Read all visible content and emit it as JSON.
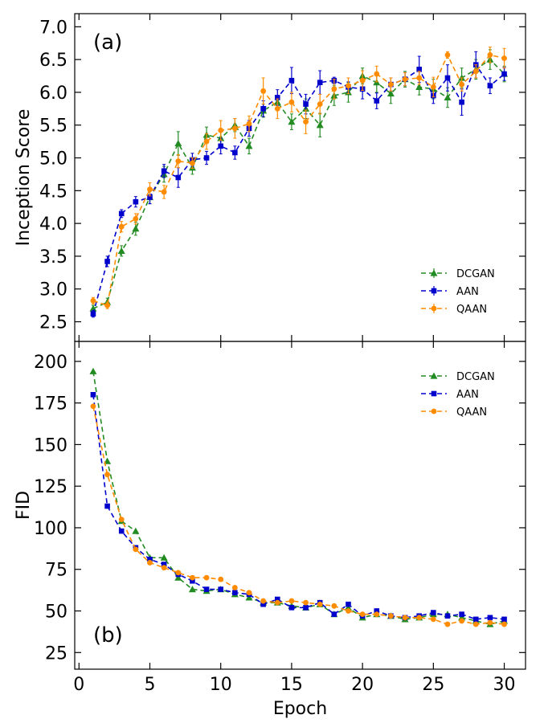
{
  "colors": {
    "DCGAN": "#228B22",
    "AAN": "#0000CD",
    "QAAN": "#FF8C00"
  },
  "chart_data": [
    {
      "type": "line",
      "panel_label": "(a)",
      "ylabel": "Inception Score",
      "xlabel": "",
      "xlim": [
        -0.3,
        31.5
      ],
      "ylim": [
        2.2,
        7.2
      ],
      "yticks": [
        2.5,
        3.0,
        3.5,
        4.0,
        4.5,
        5.0,
        5.5,
        6.0,
        6.5,
        7.0
      ],
      "ytick_labels": [
        "2.5",
        "3.0",
        "3.5",
        "4.0",
        "4.5",
        "5.0",
        "5.5",
        "6.0",
        "6.5",
        "7.0"
      ],
      "legend_position": "lower-right",
      "grid": false,
      "x": [
        1,
        2,
        3,
        4,
        5,
        6,
        7,
        8,
        9,
        10,
        11,
        12,
        13,
        14,
        15,
        16,
        17,
        18,
        19,
        20,
        21,
        22,
        23,
        24,
        25,
        26,
        27,
        28,
        29,
        30
      ],
      "series": [
        {
          "name": "DCGAN",
          "marker": "triangle",
          "linestyle": "dashed",
          "values": [
            2.7,
            2.8,
            3.58,
            3.92,
            4.4,
            4.75,
            5.22,
            4.85,
            5.35,
            5.3,
            5.5,
            5.18,
            5.72,
            5.85,
            5.55,
            5.75,
            5.5,
            5.95,
            6.0,
            6.25,
            6.15,
            5.98,
            6.2,
            6.08,
            6.05,
            5.92,
            6.22,
            6.35,
            6.5,
            6.28
          ],
          "errors": [
            0.05,
            0.06,
            0.08,
            0.1,
            0.1,
            0.12,
            0.18,
            0.1,
            0.12,
            0.12,
            0.1,
            0.12,
            0.1,
            0.1,
            0.12,
            0.15,
            0.18,
            0.15,
            0.15,
            0.12,
            0.15,
            0.15,
            0.12,
            0.12,
            0.15,
            0.15,
            0.15,
            0.15,
            0.15,
            0.12
          ]
        },
        {
          "name": "AAN",
          "marker": "square",
          "linestyle": "dashed",
          "values": [
            2.62,
            3.42,
            4.15,
            4.33,
            4.4,
            4.8,
            4.7,
            4.97,
            5.0,
            5.18,
            5.08,
            5.45,
            5.75,
            5.92,
            6.18,
            5.82,
            6.15,
            6.18,
            6.08,
            6.05,
            5.87,
            6.12,
            6.2,
            6.35,
            5.95,
            6.22,
            5.85,
            6.42,
            6.1,
            6.28
          ],
          "errors": [
            0.05,
            0.08,
            0.06,
            0.08,
            0.1,
            0.1,
            0.15,
            0.1,
            0.1,
            0.12,
            0.1,
            0.12,
            0.12,
            0.12,
            0.2,
            0.15,
            0.18,
            0.05,
            0.08,
            0.15,
            0.12,
            0.1,
            0.1,
            0.2,
            0.12,
            0.2,
            0.2,
            0.2,
            0.12,
            0.1
          ]
        },
        {
          "name": "QAAN",
          "marker": "circle",
          "linestyle": "dashed",
          "values": [
            2.82,
            2.75,
            3.95,
            4.07,
            4.52,
            4.48,
            4.95,
            4.92,
            5.25,
            5.42,
            5.45,
            5.52,
            6.02,
            5.75,
            5.85,
            5.55,
            5.82,
            6.05,
            6.1,
            6.18,
            6.28,
            6.12,
            6.2,
            6.22,
            6.08,
            6.57,
            6.12,
            6.32,
            6.57,
            6.52
          ],
          "errors": [
            0.05,
            0.05,
            0.08,
            0.08,
            0.1,
            0.1,
            0.1,
            0.08,
            0.12,
            0.15,
            0.15,
            0.12,
            0.2,
            0.15,
            0.15,
            0.18,
            0.15,
            0.15,
            0.12,
            0.15,
            0.12,
            0.1,
            0.1,
            0.1,
            0.15,
            0.05,
            0.1,
            0.1,
            0.12,
            0.15
          ]
        }
      ]
    },
    {
      "type": "line",
      "panel_label": "(b)",
      "ylabel": "FID",
      "xlabel": "Epoch",
      "xlim": [
        -0.3,
        31.5
      ],
      "ylim": [
        15,
        212
      ],
      "xticks": [
        0,
        5,
        10,
        15,
        20,
        25,
        30
      ],
      "xtick_labels": [
        "0",
        "5",
        "10",
        "15",
        "20",
        "25",
        "30"
      ],
      "yticks": [
        25,
        50,
        75,
        100,
        125,
        150,
        175,
        200
      ],
      "ytick_labels": [
        "25",
        "50",
        "75",
        "100",
        "125",
        "150",
        "175",
        "200"
      ],
      "legend_position": "upper-right",
      "grid": false,
      "x": [
        1,
        2,
        3,
        4,
        5,
        6,
        7,
        8,
        9,
        10,
        11,
        12,
        13,
        14,
        15,
        16,
        17,
        18,
        19,
        20,
        21,
        22,
        23,
        24,
        25,
        26,
        27,
        28,
        29,
        30
      ],
      "series": [
        {
          "name": "DCGAN",
          "marker": "triangle",
          "linestyle": "dashed",
          "values": [
            194,
            140,
            104,
            98,
            82,
            82,
            70,
            63,
            62,
            63,
            60,
            58,
            55,
            55,
            53,
            52,
            54,
            48,
            52,
            46,
            48,
            47,
            45,
            46,
            48,
            48,
            46,
            44,
            42,
            44
          ]
        },
        {
          "name": "AAN",
          "marker": "square",
          "linestyle": "dashed",
          "values": [
            180,
            113,
            98,
            88,
            81,
            78,
            72,
            68,
            63,
            63,
            61,
            60,
            54,
            57,
            52,
            52,
            55,
            48,
            54,
            47,
            50,
            47,
            46,
            47,
            49,
            47,
            48,
            45,
            46,
            45
          ]
        },
        {
          "name": "QAAN",
          "marker": "circle",
          "linestyle": "dashed",
          "values": [
            173,
            132,
            105,
            87,
            79,
            76,
            73,
            70,
            70,
            69,
            64,
            61,
            56,
            55,
            56,
            55,
            54,
            53,
            50,
            48,
            48,
            47,
            46,
            46,
            45,
            42,
            44,
            42,
            43,
            42
          ]
        }
      ]
    }
  ]
}
